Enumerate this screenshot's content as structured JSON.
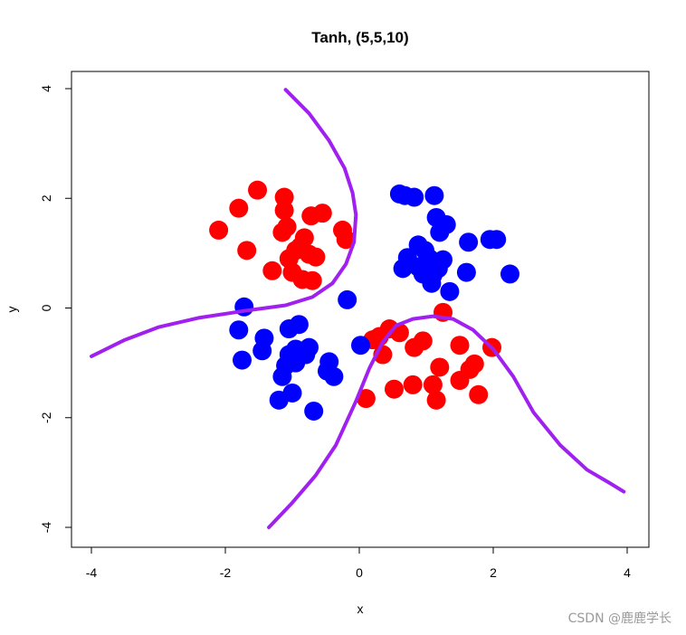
{
  "chart_data": {
    "type": "scatter",
    "title": "Tanh, (5,5,10)",
    "xlabel": "x",
    "ylabel": "y",
    "xlim": [
      -4,
      4
    ],
    "ylim": [
      -4,
      4
    ],
    "xticks": [
      -4,
      -2,
      0,
      2,
      4
    ],
    "yticks": [
      -4,
      -2,
      0,
      2,
      4
    ],
    "grid": false,
    "series": [
      {
        "color": "#ff0000",
        "points": [
          [
            -2.1,
            1.42
          ],
          [
            -1.8,
            1.82
          ],
          [
            -1.68,
            1.05
          ],
          [
            -1.52,
            2.15
          ],
          [
            -1.3,
            0.68
          ],
          [
            -1.15,
            1.38
          ],
          [
            -1.12,
            2.02
          ],
          [
            -1.12,
            1.78
          ],
          [
            -1.08,
            1.48
          ],
          [
            -1.05,
            0.9
          ],
          [
            -1.0,
            0.65
          ],
          [
            -0.95,
            1.05
          ],
          [
            -0.88,
            1.12
          ],
          [
            -0.85,
            0.52
          ],
          [
            -0.82,
            1.28
          ],
          [
            -0.75,
            0.98
          ],
          [
            -0.72,
            1.68
          ],
          [
            -0.7,
            0.5
          ],
          [
            -0.65,
            0.93
          ],
          [
            -0.55,
            1.73
          ],
          [
            -0.25,
            1.42
          ],
          [
            -0.2,
            1.25
          ],
          [
            0.1,
            -1.65
          ],
          [
            0.2,
            -0.58
          ],
          [
            0.3,
            -0.52
          ],
          [
            0.35,
            -0.85
          ],
          [
            0.45,
            -0.38
          ],
          [
            0.52,
            -1.48
          ],
          [
            0.6,
            -0.45
          ],
          [
            0.8,
            -1.4
          ],
          [
            0.82,
            -0.72
          ],
          [
            0.95,
            -0.6
          ],
          [
            1.1,
            -1.4
          ],
          [
            1.15,
            -1.68
          ],
          [
            1.2,
            -1.08
          ],
          [
            1.25,
            -0.08
          ],
          [
            1.5,
            -0.68
          ],
          [
            1.5,
            -1.32
          ],
          [
            1.65,
            -1.12
          ],
          [
            1.72,
            -1.02
          ],
          [
            1.78,
            -1.58
          ],
          [
            1.98,
            -0.72
          ]
        ]
      },
      {
        "color": "#0000ff",
        "points": [
          [
            0.6,
            2.08
          ],
          [
            0.68,
            2.05
          ],
          [
            0.82,
            2.02
          ],
          [
            1.12,
            2.05
          ],
          [
            1.15,
            1.65
          ],
          [
            1.3,
            1.52
          ],
          [
            1.2,
            1.38
          ],
          [
            1.63,
            1.2
          ],
          [
            1.95,
            1.25
          ],
          [
            2.05,
            1.25
          ],
          [
            0.88,
            1.15
          ],
          [
            0.98,
            1.05
          ],
          [
            1.05,
            0.9
          ],
          [
            0.72,
            0.92
          ],
          [
            0.65,
            0.72
          ],
          [
            0.88,
            0.75
          ],
          [
            0.95,
            0.62
          ],
          [
            1.05,
            0.78
          ],
          [
            1.1,
            0.6
          ],
          [
            1.18,
            0.72
          ],
          [
            1.25,
            0.88
          ],
          [
            1.08,
            0.45
          ],
          [
            1.35,
            0.3
          ],
          [
            1.6,
            0.65
          ],
          [
            2.25,
            0.62
          ],
          [
            -0.18,
            0.15
          ],
          [
            -1.72,
            0.02
          ],
          [
            -1.8,
            -0.4
          ],
          [
            -1.75,
            -0.95
          ],
          [
            -1.42,
            -0.55
          ],
          [
            -1.45,
            -0.78
          ],
          [
            -1.05,
            -0.38
          ],
          [
            -0.9,
            -0.3
          ],
          [
            -1.05,
            -0.85
          ],
          [
            -0.95,
            -0.75
          ],
          [
            -0.8,
            -0.85
          ],
          [
            -0.75,
            -0.72
          ],
          [
            -1.1,
            -1.05
          ],
          [
            -0.95,
            -1.0
          ],
          [
            -1.15,
            -1.25
          ],
          [
            -1.0,
            -1.55
          ],
          [
            -1.2,
            -1.68
          ],
          [
            -0.68,
            -1.88
          ],
          [
            -0.45,
            -0.98
          ],
          [
            -0.48,
            -1.15
          ],
          [
            -0.38,
            -1.25
          ],
          [
            0.02,
            -0.68
          ]
        ]
      },
      {
        "color": "#a020f0",
        "type": "line",
        "points": [
          [
            -1.1,
            3.98
          ],
          [
            -0.75,
            3.55
          ],
          [
            -0.45,
            3.05
          ],
          [
            -0.22,
            2.55
          ],
          [
            -0.1,
            2.1
          ],
          [
            -0.05,
            1.7
          ],
          [
            -0.08,
            1.2
          ],
          [
            -0.2,
            0.8
          ],
          [
            -0.4,
            0.45
          ],
          [
            -0.7,
            0.2
          ],
          [
            -1.1,
            0.05
          ],
          [
            -1.7,
            -0.05
          ],
          [
            -2.4,
            -0.18
          ],
          [
            -3.0,
            -0.35
          ],
          [
            -3.5,
            -0.58
          ],
          [
            -4.0,
            -0.88
          ]
        ]
      },
      {
        "color": "#a020f0",
        "type": "line",
        "points": [
          [
            -1.35,
            -4.0
          ],
          [
            -1.0,
            -3.55
          ],
          [
            -0.65,
            -3.05
          ],
          [
            -0.35,
            -2.5
          ],
          [
            -0.05,
            -1.7
          ],
          [
            0.15,
            -1.1
          ],
          [
            0.35,
            -0.62
          ],
          [
            0.55,
            -0.32
          ],
          [
            0.8,
            -0.2
          ],
          [
            1.1,
            -0.15
          ],
          [
            1.4,
            -0.2
          ],
          [
            1.7,
            -0.4
          ],
          [
            2.0,
            -0.75
          ],
          [
            2.3,
            -1.25
          ],
          [
            2.6,
            -1.9
          ],
          [
            3.0,
            -2.5
          ],
          [
            3.4,
            -2.95
          ],
          [
            3.75,
            -3.2
          ],
          [
            3.95,
            -3.35
          ]
        ]
      }
    ]
  },
  "watermark": "CSDN @鹿鹿学长"
}
